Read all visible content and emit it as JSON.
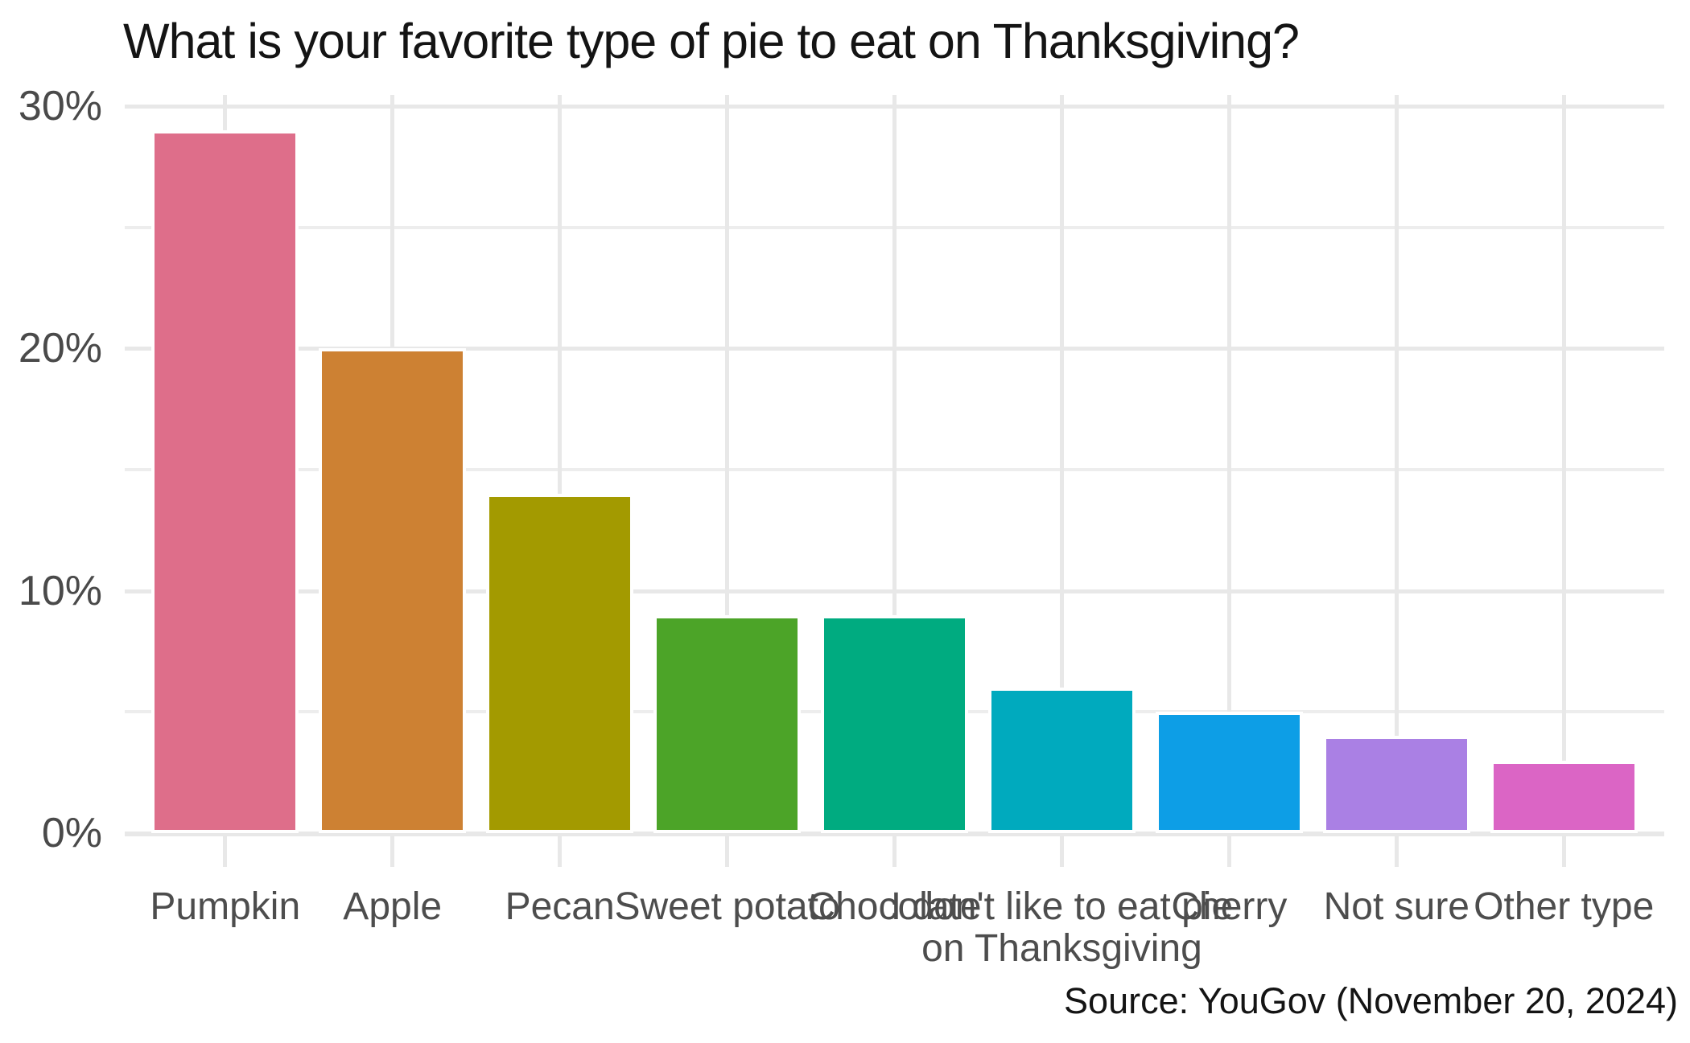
{
  "chart_data": {
    "type": "bar",
    "title": "What is your favorite type of pie to eat on Thanksgiving?",
    "source_caption": "Source: YouGov (November 20, 2024)",
    "categories": [
      "Pumpkin",
      "Apple",
      "Pecan",
      "Sweet potato",
      "Chocolate",
      "I don't like to eat pie on Thanksgiving",
      "Cherry",
      "Not sure",
      "Other type"
    ],
    "category_label_lines": [
      [
        "Pumpkin"
      ],
      [
        "Apple"
      ],
      [
        "Pecan"
      ],
      [
        "Sweet potato"
      ],
      [
        "Chocolate"
      ],
      [
        "I don't like to eat pie",
        "on Thanksgiving"
      ],
      [
        "Cherry"
      ],
      [
        "Not sure"
      ],
      [
        "Other type"
      ]
    ],
    "values_percent": [
      29,
      20,
      14,
      9,
      9,
      6,
      5,
      4,
      3
    ],
    "bar_colors": [
      "#de6e8a",
      "#cd8133",
      "#a39a00",
      "#4ca428",
      "#00ab80",
      "#00aabe",
      "#0d9ee6",
      "#aa80e4",
      "#db65c5"
    ],
    "y_axis": {
      "tick_labels": [
        "0%",
        "10%",
        "20%",
        "30%"
      ],
      "tick_values": [
        0,
        10,
        20,
        30
      ],
      "minor_tick_values": [
        5,
        15,
        25
      ],
      "min": 0,
      "max": 30
    },
    "x_axis": {
      "tick_marks": true
    },
    "legend": false,
    "grid": true,
    "colors": {
      "grid": "#e8e8e8",
      "grid_minor": "#ededed",
      "axis_text": "#4a4a4a",
      "title_text": "#141414",
      "background": "#ffffff"
    }
  }
}
